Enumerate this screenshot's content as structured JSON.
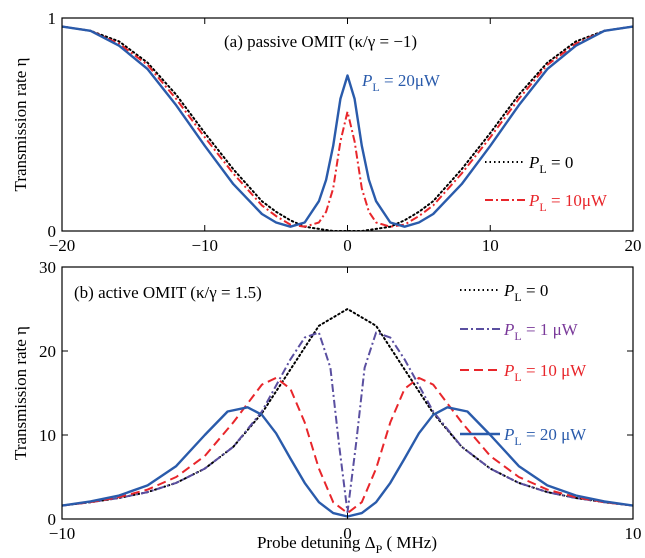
{
  "colors": {
    "black": "#000000",
    "red": "#e8262b",
    "blue": "#2a5bab",
    "purple": "#5a4fa0",
    "purple_text": "#7a3a9a"
  },
  "chart_data": [
    {
      "type": "line",
      "panel": "a",
      "title": "(a) passive OMIT (κ/γ = −1)",
      "xlabel": "",
      "ylabel": "Transmission rate  η",
      "xlim": [
        -20,
        20
      ],
      "ylim": [
        0,
        1
      ],
      "xticks": [
        "−20",
        "−10",
        "0",
        "10",
        "20"
      ],
      "yticks": [
        "0",
        "1"
      ],
      "legend": [
        {
          "name": "P_L = 0",
          "label_main": "P",
          "label_sub": "L",
          "label_rest": " = 0",
          "style": "dotted",
          "color": "#000000"
        },
        {
          "name": "P_L = 10μW",
          "label_main": "P",
          "label_sub": "L",
          "label_rest": " = 10μW",
          "style": "dashdot",
          "color": "#e8262b"
        }
      ],
      "annotation": {
        "label_main": "P",
        "label_sub": "L",
        "label_rest": " = 20μW",
        "color": "#2a5bab"
      },
      "series": [
        {
          "name": "P_L = 0",
          "style": "dotted",
          "color": "#000000",
          "x": [
            -20,
            -18,
            -16,
            -14,
            -12,
            -10,
            -8,
            -6,
            -5,
            -4,
            -3,
            -2,
            -1,
            0,
            1,
            2,
            3,
            4,
            5,
            6,
            8,
            10,
            12,
            14,
            16,
            18,
            20
          ],
          "values": [
            0.96,
            0.94,
            0.89,
            0.79,
            0.64,
            0.46,
            0.29,
            0.14,
            0.09,
            0.05,
            0.02,
            0.01,
            0.0,
            0.0,
            0.0,
            0.01,
            0.02,
            0.05,
            0.09,
            0.14,
            0.29,
            0.46,
            0.64,
            0.79,
            0.89,
            0.94,
            0.96
          ]
        },
        {
          "name": "P_L = 10μW",
          "style": "dashdot",
          "color": "#e8262b",
          "x": [
            -20,
            -18,
            -16,
            -14,
            -12,
            -10,
            -8,
            -6,
            -5,
            -4,
            -3,
            -2,
            -1.5,
            -1,
            -0.5,
            0,
            0.5,
            1,
            1.5,
            2,
            3,
            4,
            5,
            6,
            8,
            10,
            12,
            14,
            16,
            18,
            20
          ],
          "values": [
            0.96,
            0.94,
            0.88,
            0.78,
            0.62,
            0.44,
            0.27,
            0.12,
            0.07,
            0.03,
            0.02,
            0.04,
            0.09,
            0.2,
            0.42,
            0.56,
            0.42,
            0.2,
            0.09,
            0.04,
            0.02,
            0.03,
            0.07,
            0.12,
            0.27,
            0.44,
            0.62,
            0.78,
            0.88,
            0.94,
            0.96
          ]
        },
        {
          "name": "P_L = 20μW",
          "style": "solid",
          "color": "#2a5bab",
          "x": [
            -20,
            -18,
            -16,
            -14,
            -12,
            -10,
            -8,
            -6,
            -5,
            -4,
            -3,
            -2,
            -1.5,
            -1,
            -0.5,
            0,
            0.5,
            1,
            1.5,
            2,
            3,
            4,
            5,
            6,
            8,
            10,
            12,
            14,
            16,
            18,
            20
          ],
          "values": [
            0.96,
            0.94,
            0.87,
            0.76,
            0.59,
            0.4,
            0.22,
            0.08,
            0.04,
            0.02,
            0.04,
            0.14,
            0.24,
            0.4,
            0.62,
            0.73,
            0.62,
            0.4,
            0.24,
            0.14,
            0.04,
            0.02,
            0.04,
            0.08,
            0.22,
            0.4,
            0.59,
            0.76,
            0.87,
            0.94,
            0.96
          ]
        }
      ]
    },
    {
      "type": "line",
      "panel": "b",
      "title": "(b) active OMIT (κ/γ = 1.5)",
      "xlabel": "Probe detuning Δ_P ( MHz)",
      "xlabel_main": "Probe detuning Δ",
      "xlabel_sub": "P",
      "xlabel_rest": " ( MHz)",
      "ylabel": "Transmission rate  η",
      "xlim": [
        -10,
        10
      ],
      "ylim": [
        0,
        30
      ],
      "xticks": [
        "−10",
        "0",
        "10"
      ],
      "yticks": [
        "0",
        "10",
        "20",
        "30"
      ],
      "legend": [
        {
          "name": "P_L = 0",
          "label_main": "P",
          "label_sub": "L",
          "label_rest": " = 0",
          "style": "dotted",
          "color": "#000000"
        },
        {
          "name": "P_L = 1 μW",
          "label_main": "P",
          "label_sub": "L",
          "label_rest": " = 1 μW",
          "style": "dashdot",
          "color": "#5a4fa0"
        },
        {
          "name": "P_L = 10 μW",
          "label_main": "P",
          "label_sub": "L",
          "label_rest": " = 10 μW",
          "style": "dashed",
          "color": "#e8262b"
        },
        {
          "name": "P_L = 20 μW",
          "label_main": "P",
          "label_sub": "L",
          "label_rest": " = 20 μW",
          "style": "solid",
          "color": "#2a5bab"
        }
      ],
      "series": [
        {
          "name": "P_L = 0",
          "style": "dotted",
          "color": "#000000",
          "x": [
            -10,
            -9,
            -8,
            -7,
            -6,
            -5,
            -4,
            -3,
            -2,
            -1,
            0,
            1,
            2,
            3,
            4,
            5,
            6,
            7,
            8,
            9,
            10
          ],
          "values": [
            1.6,
            2.0,
            2.5,
            3.2,
            4.3,
            6.0,
            8.6,
            12.6,
            17.8,
            23.0,
            25.0,
            23.0,
            17.8,
            12.6,
            8.6,
            6.0,
            4.3,
            3.2,
            2.5,
            2.0,
            1.6
          ]
        },
        {
          "name": "P_L = 1 μW",
          "style": "dashdot",
          "color": "#5a4fa0",
          "x": [
            -10,
            -9,
            -8,
            -7,
            -6,
            -5,
            -4,
            -3,
            -2,
            -1.5,
            -1,
            -0.6,
            -0.3,
            0,
            0.3,
            0.6,
            1,
            1.5,
            2,
            3,
            4,
            5,
            6,
            7,
            8,
            9,
            10
          ],
          "values": [
            1.6,
            2.0,
            2.5,
            3.2,
            4.3,
            6.0,
            8.6,
            12.8,
            19.0,
            21.6,
            22.2,
            18.0,
            9.0,
            0.8,
            9.0,
            18.0,
            22.2,
            21.6,
            19.0,
            12.8,
            8.6,
            6.0,
            4.3,
            3.2,
            2.5,
            2.0,
            1.6
          ]
        },
        {
          "name": "P_L = 10 μW",
          "style": "dashed",
          "color": "#e8262b",
          "x": [
            -10,
            -9,
            -8,
            -7,
            -6,
            -5,
            -4,
            -3,
            -2.5,
            -2,
            -1.5,
            -1,
            -0.5,
            0,
            0.5,
            1,
            1.5,
            2,
            2.5,
            3,
            4,
            5,
            6,
            7,
            8,
            9,
            10
          ],
          "values": [
            1.6,
            2.0,
            2.6,
            3.5,
            5.0,
            7.5,
            11.5,
            16.0,
            16.8,
            15.5,
            11.5,
            6.0,
            2.0,
            0.7,
            2.0,
            6.0,
            11.5,
            15.5,
            16.8,
            16.0,
            11.5,
            7.5,
            5.0,
            3.5,
            2.6,
            2.0,
            1.6
          ]
        },
        {
          "name": "P_L = 20 μW",
          "style": "solid",
          "color": "#2a5bab",
          "x": [
            -10,
            -9,
            -8,
            -7,
            -6,
            -5,
            -4.2,
            -3.5,
            -3,
            -2.5,
            -2,
            -1.5,
            -1,
            -0.5,
            0,
            0.5,
            1,
            1.5,
            2,
            2.5,
            3,
            3.5,
            4.2,
            5,
            6,
            7,
            8,
            9,
            10
          ],
          "values": [
            1.6,
            2.1,
            2.8,
            4.0,
            6.3,
            10.0,
            12.8,
            13.3,
            12.4,
            10.2,
            7.2,
            4.3,
            2.0,
            0.7,
            0.3,
            0.7,
            2.0,
            4.3,
            7.2,
            10.2,
            12.4,
            13.3,
            12.8,
            10.0,
            6.3,
            4.0,
            2.8,
            2.1,
            1.6
          ]
        }
      ]
    }
  ]
}
